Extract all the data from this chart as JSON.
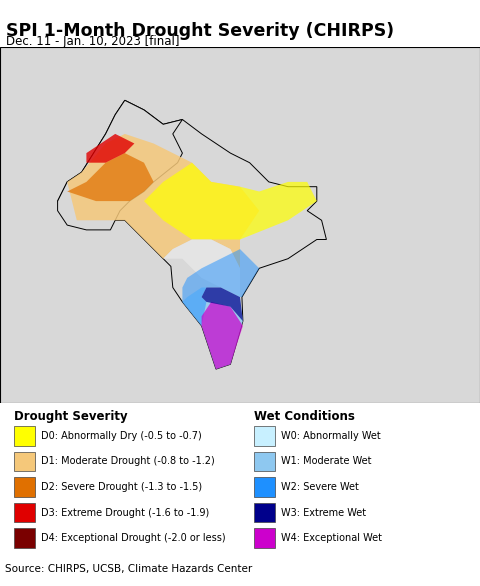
{
  "title": "SPI 1-Month Drought Severity (CHIRPS)",
  "subtitle": "Dec. 11 - Jan. 10, 2023 [final]",
  "source": "Source: CHIRPS, UCSB, Climate Hazards Center",
  "title_fontsize": 12.5,
  "subtitle_fontsize": 8.5,
  "source_fontsize": 7.5,
  "background_color": "#ffffff",
  "ocean_color": "#aadaef",
  "land_color": "#d8d8d8",
  "legend_bg": "#f0f0f0",
  "drought_legend": [
    {
      "code": "D0",
      "label": "D0: Abnormally Dry (-0.5 to -0.7)",
      "color": "#ffff00"
    },
    {
      "code": "D1",
      "label": "D1: Moderate Drought (-0.8 to -1.2)",
      "color": "#f5c87a"
    },
    {
      "code": "D2",
      "label": "D2: Severe Drought (-1.3 to -1.5)",
      "color": "#e07000"
    },
    {
      "code": "D3",
      "label": "D3: Extreme Drought (-1.6 to -1.9)",
      "color": "#e00000"
    },
    {
      "code": "D4",
      "label": "D4: Exceptional Drought (-2.0 or less)",
      "color": "#7a0000"
    }
  ],
  "wet_legend": [
    {
      "code": "W0",
      "label": "W0: Abnormally Wet",
      "color": "#c8f0ff"
    },
    {
      "code": "W1",
      "label": "W1: Moderate Wet",
      "color": "#8ec8f0"
    },
    {
      "code": "W2",
      "label": "W2: Severe Wet",
      "color": "#1e90ff"
    },
    {
      "code": "W3",
      "label": "W3: Extreme Wet",
      "color": "#00008b"
    },
    {
      "code": "W4",
      "label": "W4: Exceptional Wet",
      "color": "#cc00cc"
    }
  ],
  "drought_legend_title": "Drought Severity",
  "wet_legend_title": "Wet Conditions"
}
